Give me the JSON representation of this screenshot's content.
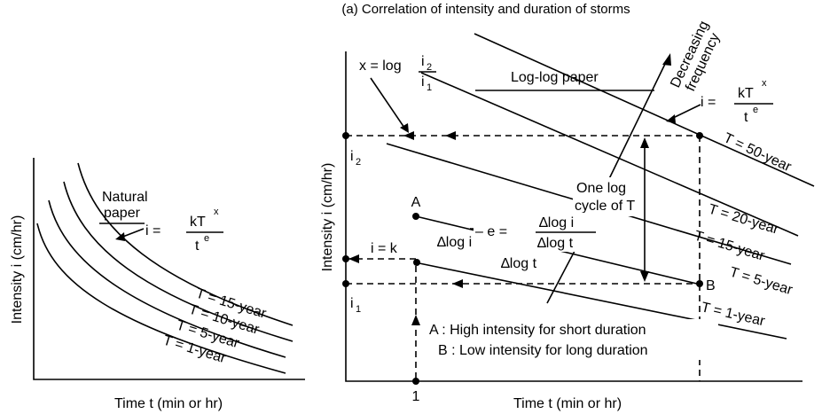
{
  "caption": "(a) Correlation of intensity and duration of storms",
  "left_panel": {
    "y_axis_label": "Intensity i (cm/hr)",
    "x_axis_label": "Time t (min or hr)",
    "paper_label_line1": "Natural",
    "paper_label_line2": "paper",
    "formula": {
      "lhs": "i =",
      "numerator": "kT",
      "numerator_exp": "x",
      "denominator": "t",
      "denominator_exp": "e"
    },
    "curves": [
      "T = 15-year",
      "T = 10-year",
      "T = 5-year",
      "T = 1-year"
    ]
  },
  "right_panel": {
    "y_axis_label": "Intensity i (cm/hr)",
    "x_axis_label": "Time t (min or hr)",
    "x_tick": "1",
    "x_eq": {
      "lhs": "x = log",
      "num": "i",
      "num_sub": "2",
      "den": "i",
      "den_sub": "1"
    },
    "paper_label": "Log-log paper",
    "decreasing_line1": "Decreasing",
    "decreasing_line2": "frequency",
    "formula": {
      "lhs": "i =",
      "numerator": "kT",
      "numerator_exp": "x",
      "denominator": "t",
      "denominator_exp": "e"
    },
    "i2_label": "i",
    "i2_sub": "2",
    "i1_label": "i",
    "i1_sub": "1",
    "one_log_line1": "One log",
    "one_log_line2": "cycle of T",
    "point_a": "A",
    "point_b": "B",
    "ik_label": "i = k",
    "slope_eq": {
      "lhs": "– e =",
      "num": "∆log i",
      "den": "∆log t"
    },
    "dlogi": "∆log i",
    "dlogt": "∆log t",
    "lines": [
      "T = 50-year",
      "T = 20-year",
      "T = 15-year",
      "T = 5-year",
      "T = 1-year"
    ],
    "note_a": "A : High intensity for short duration",
    "note_b": "B : Low intensity for long duration"
  }
}
